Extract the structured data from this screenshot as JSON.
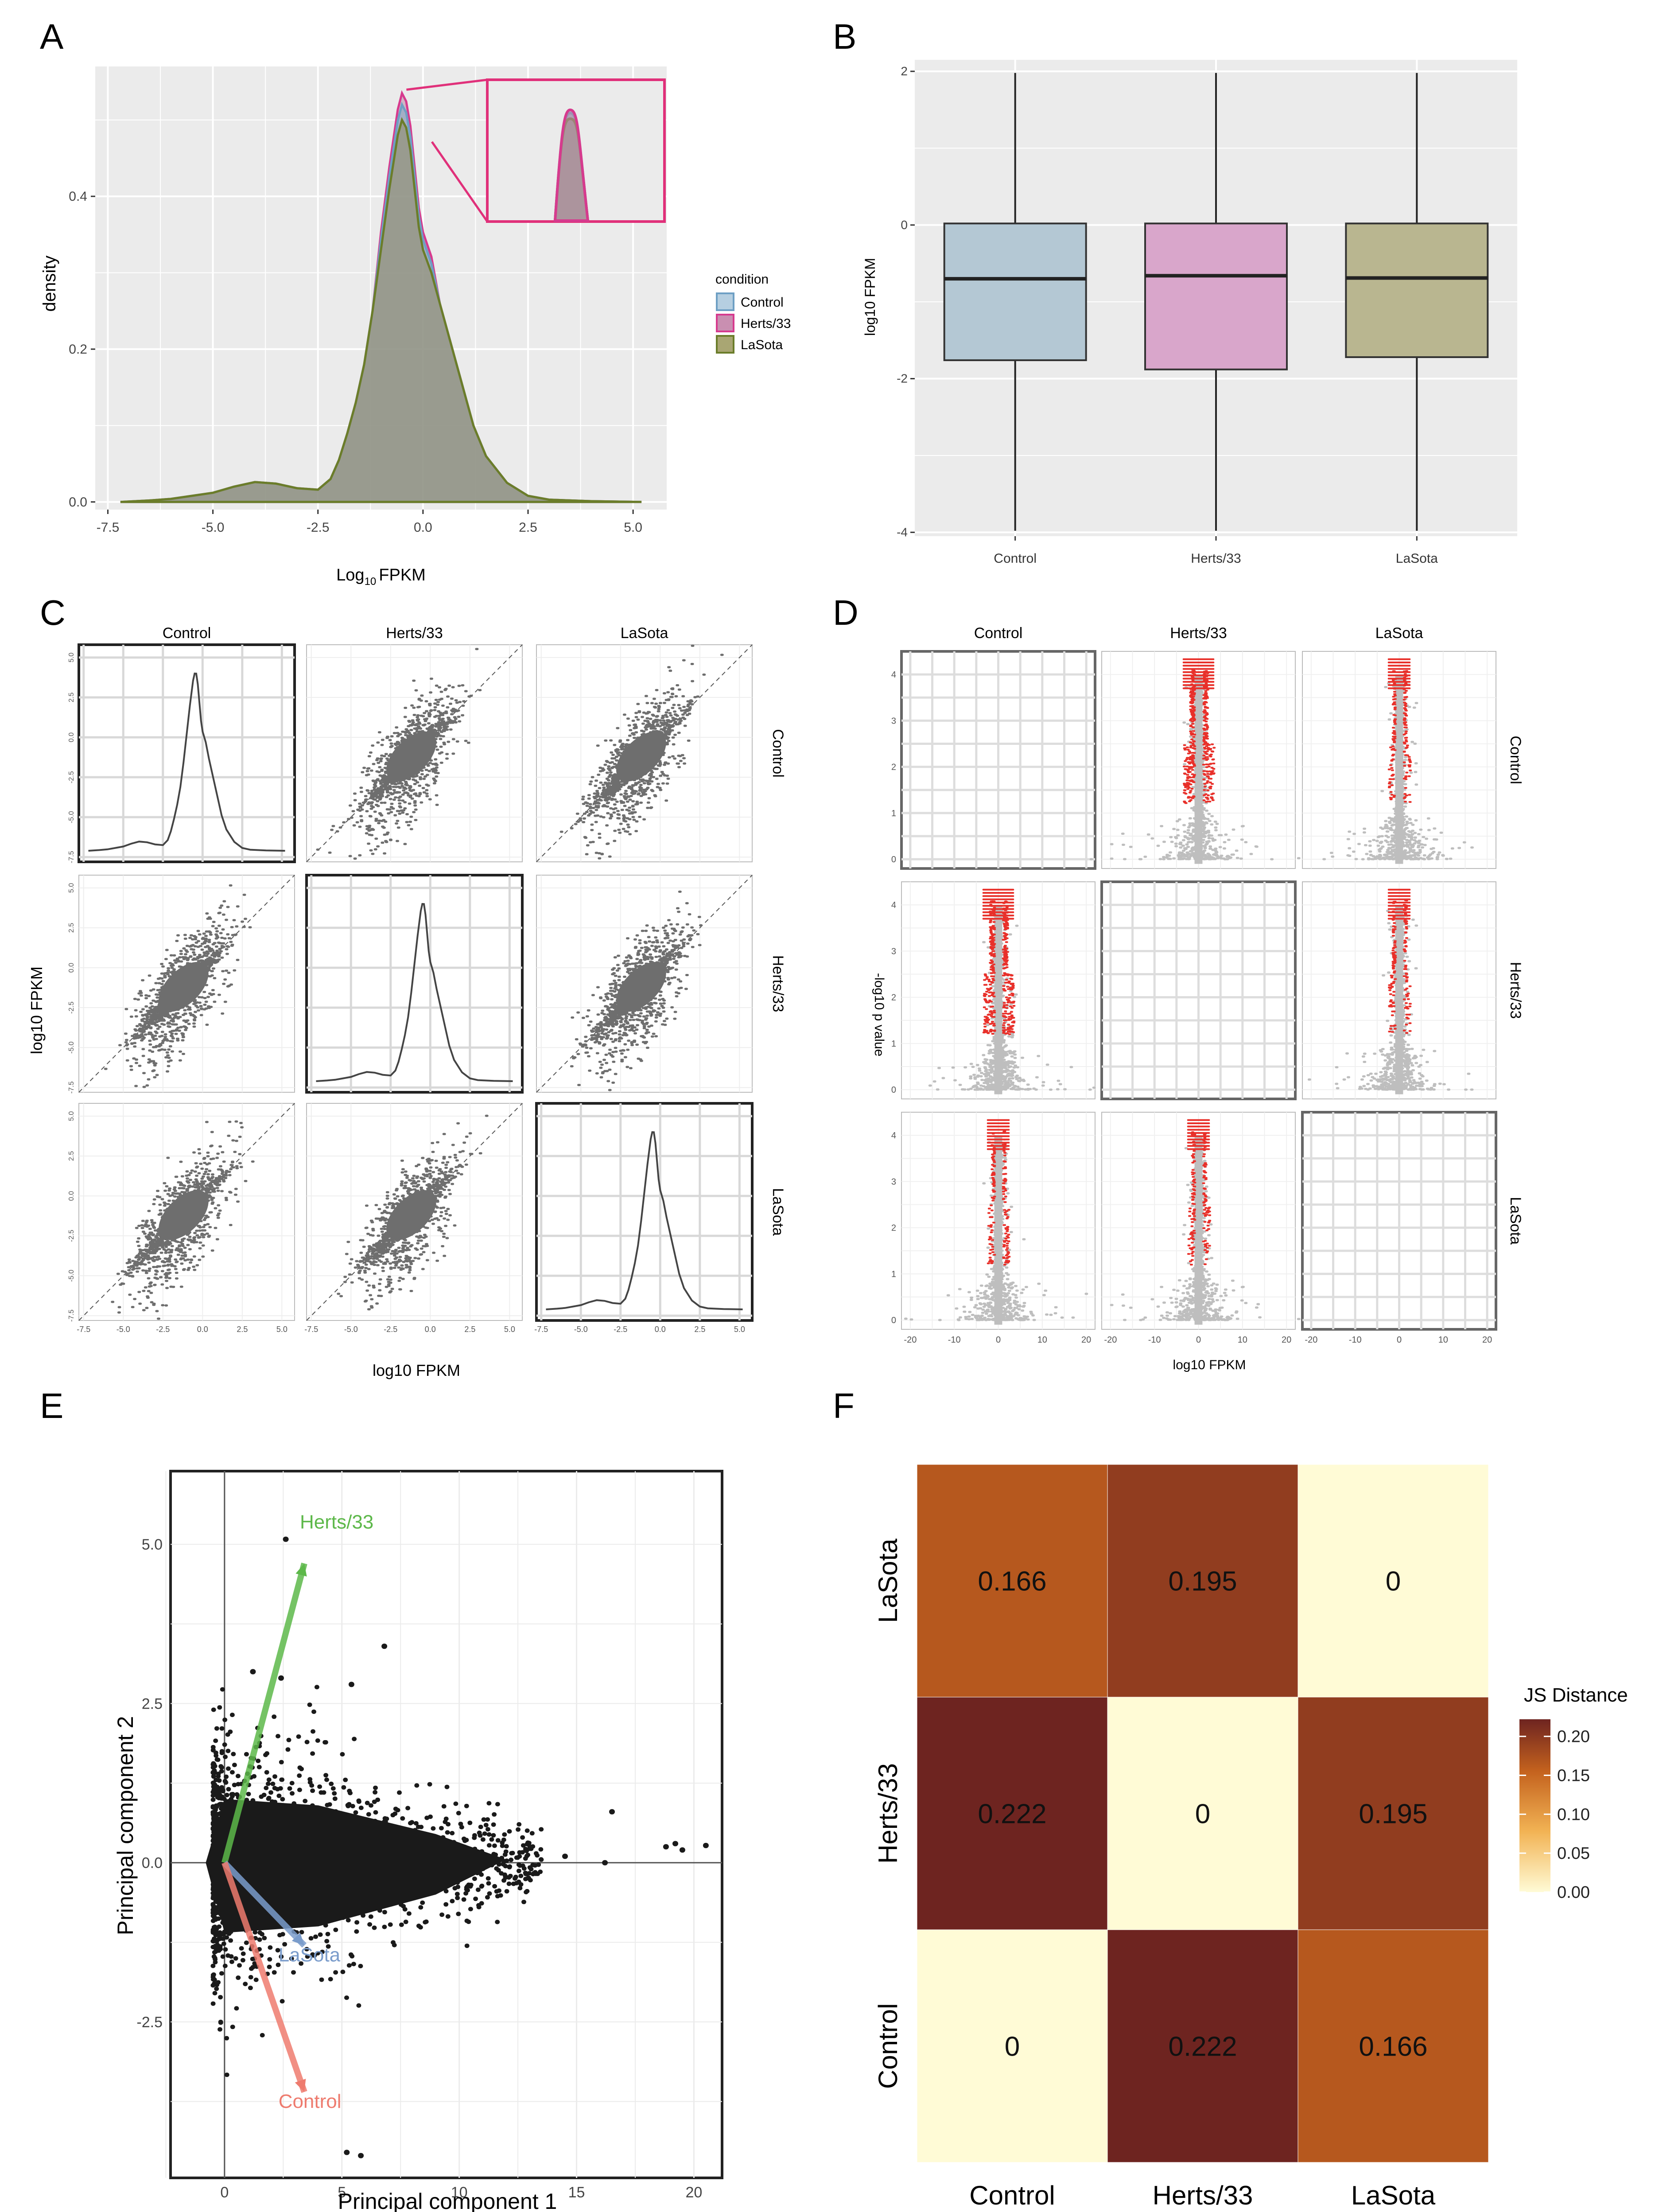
{
  "colors": {
    "panel_bg": "#EBEBEB",
    "grid": "#FFFFFF",
    "control": "#6E9FC4",
    "herts": "#D63A8E",
    "lasota": "#6B7D2A",
    "density_fill": "#8A7A72",
    "scatter": "#6E6E6E",
    "volcano_grey": "#BEBEBE",
    "volcano_red": "#E8302A",
    "inset_frame": "#E0307A",
    "pca_points": "#1A1A1A",
    "pca_herts": "#5DB84A",
    "pca_lasota": "#7A9CCB",
    "pca_control": "#EE7B6E"
  },
  "panels": {
    "A": {
      "label": "A"
    },
    "B": {
      "label": "B"
    },
    "C": {
      "label": "C"
    },
    "D": {
      "label": "D"
    },
    "E": {
      "label": "E"
    },
    "F": {
      "label": "F"
    }
  },
  "chart_data": [
    {
      "id": "A",
      "type": "area",
      "title": "",
      "xlabel_main": "Log",
      "xlabel_sub": "10",
      "xlabel_tail": "FPKM",
      "ylabel": "density",
      "xlim": [
        -7.8,
        5.8
      ],
      "ylim": [
        -0.01,
        0.57
      ],
      "xticks": [
        -7.5,
        -5.0,
        -2.5,
        0.0,
        2.5,
        5.0
      ],
      "xtick_labels": [
        "-7.5",
        "-5.0",
        "-2.5",
        "0.0",
        "2.5",
        "5.0"
      ],
      "yticks": [
        0.0,
        0.2,
        0.4
      ],
      "ytick_labels": [
        "0.0",
        "0.2",
        "0.4"
      ],
      "legend_title": "condition",
      "legend_position": "right",
      "series": [
        {
          "name": "Control",
          "peak": 0.52
        },
        {
          "name": "Herts/33",
          "peak": 0.535
        },
        {
          "name": "LaSota",
          "peak": 0.5
        }
      ],
      "x": [
        -7.2,
        -6.5,
        -6.0,
        -5.5,
        -5.0,
        -4.5,
        -4.0,
        -3.5,
        -3.0,
        -2.5,
        -2.2,
        -2.0,
        -1.8,
        -1.6,
        -1.4,
        -1.2,
        -1.0,
        -0.8,
        -0.6,
        -0.5,
        -0.4,
        -0.3,
        -0.2,
        -0.1,
        0.0,
        0.2,
        0.4,
        0.6,
        0.8,
        1.0,
        1.2,
        1.5,
        2.0,
        2.5,
        3.0,
        4.0,
        5.2
      ],
      "density": [
        0.0,
        0.002,
        0.004,
        0.008,
        0.012,
        0.02,
        0.026,
        0.024,
        0.018,
        0.016,
        0.03,
        0.055,
        0.09,
        0.13,
        0.18,
        0.25,
        0.33,
        0.41,
        0.48,
        0.5,
        0.49,
        0.46,
        0.41,
        0.36,
        0.33,
        0.3,
        0.26,
        0.22,
        0.18,
        0.14,
        0.1,
        0.06,
        0.025,
        0.008,
        0.003,
        0.001,
        0.0
      ],
      "inset": true
    },
    {
      "id": "B",
      "type": "box",
      "title": "",
      "xlabel": "",
      "ylabel": "log10 FPKM",
      "ylim": [
        -4.05,
        2.15
      ],
      "yticks": [
        -4,
        -2,
        0,
        2
      ],
      "ytick_labels": [
        "-4",
        "-2",
        "0",
        "2"
      ],
      "categories": [
        "Control",
        "Herts/33",
        "LaSota"
      ],
      "boxes": [
        {
          "name": "Control",
          "min": -3.98,
          "q1": -1.76,
          "median": -0.7,
          "q3": 0.02,
          "max": 1.98
        },
        {
          "name": "Herts/33",
          "min": -3.98,
          "q1": -1.88,
          "median": -0.66,
          "q3": 0.02,
          "max": 1.98
        },
        {
          "name": "LaSota",
          "min": -3.98,
          "q1": -1.72,
          "median": -0.69,
          "q3": 0.02,
          "max": 1.98
        }
      ]
    },
    {
      "id": "C",
      "type": "scatter",
      "title": "",
      "xlabel": "log10 FPKM",
      "ylabel": "log10 FPKM",
      "col_labels": [
        "Control",
        "Herts/33",
        "LaSota"
      ],
      "row_labels": [
        "Control",
        "Herts/33",
        "LaSota"
      ],
      "lim": [
        -7.8,
        5.8
      ],
      "ticks": [
        -7.5,
        -5.0,
        -2.5,
        0.0,
        2.5,
        5.0
      ],
      "tick_labels": [
        "-7.5",
        "-5.0",
        "-2.5",
        "0.0",
        "2.5",
        "5.0"
      ],
      "diagonal": "density"
    },
    {
      "id": "D",
      "type": "scatter",
      "title": "",
      "xlabel": "log10 FPKM",
      "ylabel": "-log10 p value",
      "col_labels": [
        "Control",
        "Herts/33",
        "LaSota"
      ],
      "row_labels": [
        "Control",
        "Herts/33",
        "LaSota"
      ],
      "xlim": [
        -22,
        22
      ],
      "ylim": [
        -0.2,
        4.5
      ],
      "xticks": [
        -20,
        -10,
        0,
        10,
        20
      ],
      "xtick_labels": [
        "-20",
        "-10",
        "0",
        "10",
        "20"
      ],
      "yticks": [
        0,
        1,
        2,
        3,
        4
      ],
      "ytick_labels": [
        "0",
        "1",
        "2",
        "3",
        "4"
      ],
      "diagonal": "empty"
    },
    {
      "id": "E",
      "type": "scatter",
      "title": "",
      "xlabel": "Principal component 1",
      "ylabel": "Principal component 2",
      "xlim": [
        -2.3,
        21.2
      ],
      "ylim": [
        -4.95,
        6.15
      ],
      "xticks": [
        0,
        5,
        10,
        15,
        20
      ],
      "xtick_labels": [
        "0",
        "5",
        "10",
        "15",
        "20"
      ],
      "yticks": [
        -2.5,
        0.0,
        2.5,
        5.0
      ],
      "ytick_labels": [
        "-2.5",
        "0.0",
        "2.5",
        "5.0"
      ],
      "vectors": [
        {
          "name": "Herts/33",
          "x": 3.4,
          "y": 4.7
        },
        {
          "name": "LaSota",
          "x": 3.4,
          "y": -1.3
        },
        {
          "name": "Control",
          "x": 3.4,
          "y": -3.6
        }
      ],
      "outliers": [
        [
          2.6,
          5.08
        ],
        [
          1.2,
          3.0
        ],
        [
          2.4,
          2.9
        ],
        [
          5.4,
          2.8
        ],
        [
          6.8,
          3.4
        ],
        [
          16.5,
          0.8
        ],
        [
          18.8,
          0.25
        ],
        [
          19.2,
          0.3
        ],
        [
          19.5,
          0.2
        ],
        [
          20.5,
          0.27
        ],
        [
          5.2,
          -4.55
        ],
        [
          5.8,
          -4.6
        ],
        [
          14.5,
          0.1
        ],
        [
          16.2,
          0.0
        ]
      ]
    },
    {
      "id": "F",
      "type": "heatmap",
      "title": "",
      "x_categories": [
        "Control",
        "Herts/33",
        "LaSota"
      ],
      "y_categories": [
        "LaSota",
        "Herts/33",
        "Control"
      ],
      "values": [
        [
          0.166,
          0.195,
          0
        ],
        [
          0.222,
          0,
          0.195
        ],
        [
          0,
          0.222,
          0.166
        ]
      ],
      "value_labels": [
        [
          "0.166",
          "0.195",
          "0"
        ],
        [
          "0.222",
          "0",
          "0.195"
        ],
        [
          "0",
          "0.222",
          "0.166"
        ]
      ],
      "legend_title": "JS Distance",
      "legend_ticks": [
        0.0,
        0.05,
        0.1,
        0.15,
        0.2
      ],
      "legend_tick_labels": [
        "0.00",
        "0.05",
        "0.10",
        "0.15",
        "0.20"
      ],
      "vmin": 0,
      "vmax": 0.222
    }
  ]
}
